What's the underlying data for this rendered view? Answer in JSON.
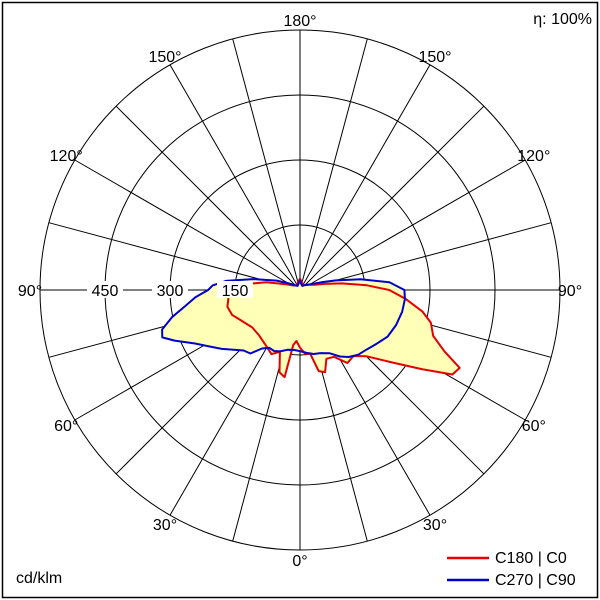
{
  "diagram": {
    "eta_label": "η: 100%",
    "unit_label": "cd/klm"
  },
  "legend": {
    "items": [
      {
        "label": "C180 | C0",
        "color": "#e60000"
      },
      {
        "label": "C270 | C90",
        "color": "#0000cd"
      }
    ]
  },
  "chart_data": {
    "type": "line",
    "subtype": "polar-photometric-distribution",
    "unit": "cd/klm",
    "efficiency": "η: 100%",
    "angle_convention": "degrees from nadir (0° at bottom); positive angles = right half, negative = left half",
    "angle_grid_step_deg": 15,
    "angle_label_step_deg": 30,
    "angle_tick_labels": [
      "0°",
      "30°",
      "60°",
      "90°",
      "120°",
      "150°",
      "180°"
    ],
    "radial_ticks": [
      150,
      300,
      450
    ],
    "radial_tick_labels": [
      "150",
      "300",
      "450"
    ],
    "radial_max": 600,
    "grid": true,
    "legend_position": "bottom-right",
    "fill_color": "#ffffb8",
    "series": [
      {
        "name": "C180 | C0",
        "color": "#e60000",
        "points": [
          [
            -180,
            26
          ],
          [
            -168,
            20
          ],
          [
            -155,
            13
          ],
          [
            -140,
            14
          ],
          [
            -125,
            18
          ],
          [
            -112,
            35
          ],
          [
            -103,
            80
          ],
          [
            -96,
            128
          ],
          [
            -90,
            150
          ],
          [
            -84,
            166
          ],
          [
            -77,
            172
          ],
          [
            -70,
            167
          ],
          [
            -62,
            152
          ],
          [
            -52,
            140
          ],
          [
            -42,
            141
          ],
          [
            -32,
            150
          ],
          [
            -24,
            162
          ],
          [
            -18,
            150
          ],
          [
            -14,
            196
          ],
          [
            -10,
            204
          ],
          [
            -7,
            128
          ],
          [
            -4,
            118
          ],
          [
            0,
            133
          ],
          [
            5,
            149
          ],
          [
            9,
            148
          ],
          [
            13,
            192
          ],
          [
            17,
            198
          ],
          [
            21,
            170
          ],
          [
            27,
            173
          ],
          [
            33,
            201
          ],
          [
            39,
            196
          ],
          [
            45,
            216
          ],
          [
            52,
            272
          ],
          [
            57,
            335
          ],
          [
            61,
            402
          ],
          [
            64,
            410
          ],
          [
            67,
            362
          ],
          [
            71,
            325
          ],
          [
            76,
            311
          ],
          [
            80,
            287
          ],
          [
            85,
            246
          ],
          [
            90,
            206
          ],
          [
            94,
            155
          ],
          [
            99,
            98
          ],
          [
            104,
            58
          ],
          [
            110,
            36
          ],
          [
            120,
            24
          ],
          [
            135,
            16
          ],
          [
            150,
            13
          ],
          [
            165,
            18
          ],
          [
            180,
            26
          ]
        ]
      },
      {
        "name": "C270 | C90",
        "color": "#0000cd",
        "points": [
          [
            -180,
            22
          ],
          [
            -165,
            14
          ],
          [
            -150,
            11
          ],
          [
            -135,
            15
          ],
          [
            -122,
            28
          ],
          [
            -112,
            58
          ],
          [
            -103,
            112
          ],
          [
            -97,
            172
          ],
          [
            -93,
            202
          ],
          [
            -90,
            212
          ],
          [
            -86,
            242
          ],
          [
            -82,
            268
          ],
          [
            -78,
            302
          ],
          [
            -74,
            331
          ],
          [
            -71,
            336
          ],
          [
            -68,
            312
          ],
          [
            -63,
            272
          ],
          [
            -58,
            246
          ],
          [
            -53,
            226
          ],
          [
            -48,
            206
          ],
          [
            -43,
            191
          ],
          [
            -38,
            186
          ],
          [
            -33,
            161
          ],
          [
            -28,
            151
          ],
          [
            -23,
            153
          ],
          [
            -18,
            149
          ],
          [
            -12,
            141
          ],
          [
            -6,
            139
          ],
          [
            0,
            141
          ],
          [
            6,
            146
          ],
          [
            12,
            151
          ],
          [
            18,
            153
          ],
          [
            25,
            161
          ],
          [
            31,
            179
          ],
          [
            36,
            191
          ],
          [
            42,
            201
          ],
          [
            48,
            206
          ],
          [
            55,
            216
          ],
          [
            62,
            229
          ],
          [
            70,
            236
          ],
          [
            78,
            241
          ],
          [
            85,
            243
          ],
          [
            90,
            241
          ],
          [
            95,
            207
          ],
          [
            100,
            142
          ],
          [
            105,
            86
          ],
          [
            110,
            52
          ],
          [
            120,
            26
          ],
          [
            135,
            16
          ],
          [
            150,
            11
          ],
          [
            165,
            13
          ],
          [
            180,
            22
          ]
        ]
      }
    ]
  }
}
